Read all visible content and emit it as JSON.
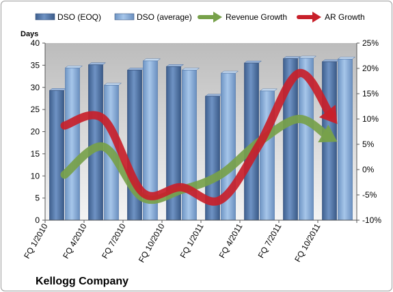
{
  "chart_data": {
    "type": "bar",
    "title": "",
    "company": "Kellogg Company",
    "ylabel": "Days",
    "ylim": [
      0,
      40
    ],
    "yticks": [
      "0",
      "5",
      "10",
      "15",
      "20",
      "25",
      "30",
      "35",
      "40"
    ],
    "y2lim": [
      -10,
      25
    ],
    "y2ticks": [
      "-10%",
      "-5%",
      "0%",
      "5%",
      "10%",
      "15%",
      "20%",
      "25%"
    ],
    "categories": [
      "FQ 1/2010",
      "FQ 4/2010",
      "FQ 7/2010",
      "FQ 10/2010",
      "FQ 1/2011",
      "FQ 4/2011",
      "FQ 7/2011",
      "FQ 10/2011"
    ],
    "legend_position": "top",
    "gridlines": false,
    "series": [
      {
        "name": "DSO (EOQ)",
        "type": "bar",
        "axis": "left",
        "color": "#5a7fb0",
        "values": [
          29.3,
          35.1,
          33.9,
          34.7,
          28.0,
          35.5,
          36.5,
          35.8
        ]
      },
      {
        "name": "DSO (average)",
        "type": "bar",
        "axis": "left",
        "color": "#8cb0d8",
        "values": [
          34.4,
          30.5,
          36.0,
          33.9,
          33.2,
          29.2,
          36.6,
          36.4
        ]
      },
      {
        "name": "Revenue Growth",
        "type": "line-arrow",
        "axis": "right",
        "unit": "%",
        "color": "#77a14a",
        "values": [
          -1.0,
          4.5,
          -5.5,
          -4.0,
          -1.0,
          5.5,
          10.0,
          5.5
        ]
      },
      {
        "name": "AR Growth",
        "type": "line-arrow",
        "axis": "right",
        "unit": "%",
        "color": "#c8202a",
        "values": [
          8.7,
          10.0,
          -4.5,
          -3.5,
          -6.0,
          5.0,
          19.0,
          9.0
        ]
      }
    ]
  }
}
